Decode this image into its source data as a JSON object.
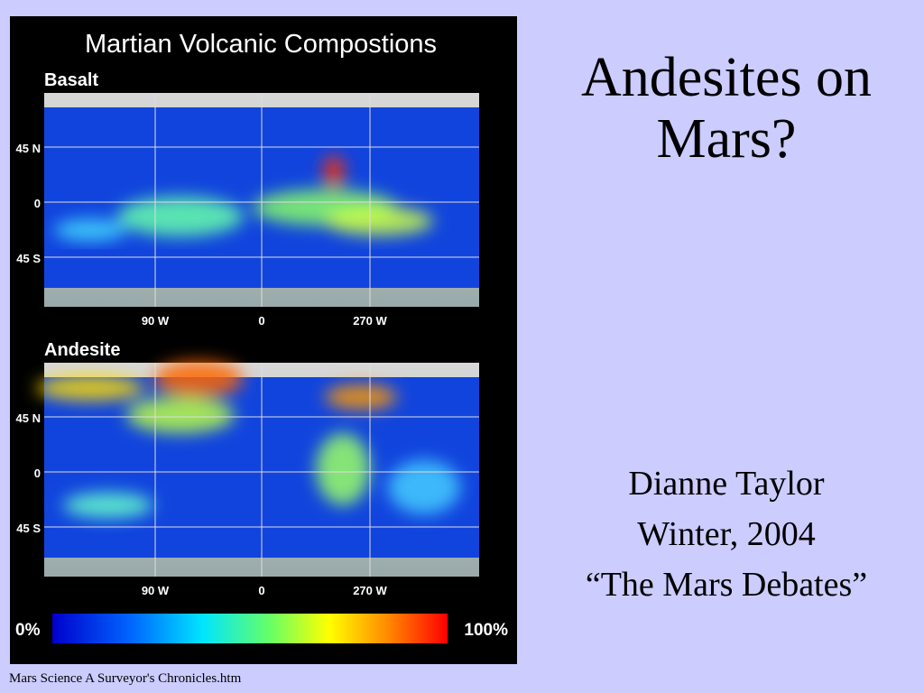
{
  "slide": {
    "title_lines": [
      "Andesites on",
      "Mars?"
    ],
    "author": "Dianne Taylor",
    "date": "Winter, 2004",
    "course": "“The Mars Debates”"
  },
  "figure": {
    "title": "Martian Volcanic Compostions",
    "maps": [
      {
        "label": "Basalt",
        "lat_labels": [
          "45 N",
          "0",
          "45 S"
        ],
        "lon_labels": [
          "90 W",
          "0",
          "270 W"
        ]
      },
      {
        "label": "Andesite",
        "lat_labels": [
          "45 N",
          "0",
          "45 S"
        ],
        "lon_labels": [
          "90 W",
          "0",
          "270 W"
        ]
      }
    ],
    "scale": {
      "min_label": "0%",
      "max_label": "100%"
    }
  },
  "footer": "Mars Science A Surveyor's Chronicles.htm"
}
